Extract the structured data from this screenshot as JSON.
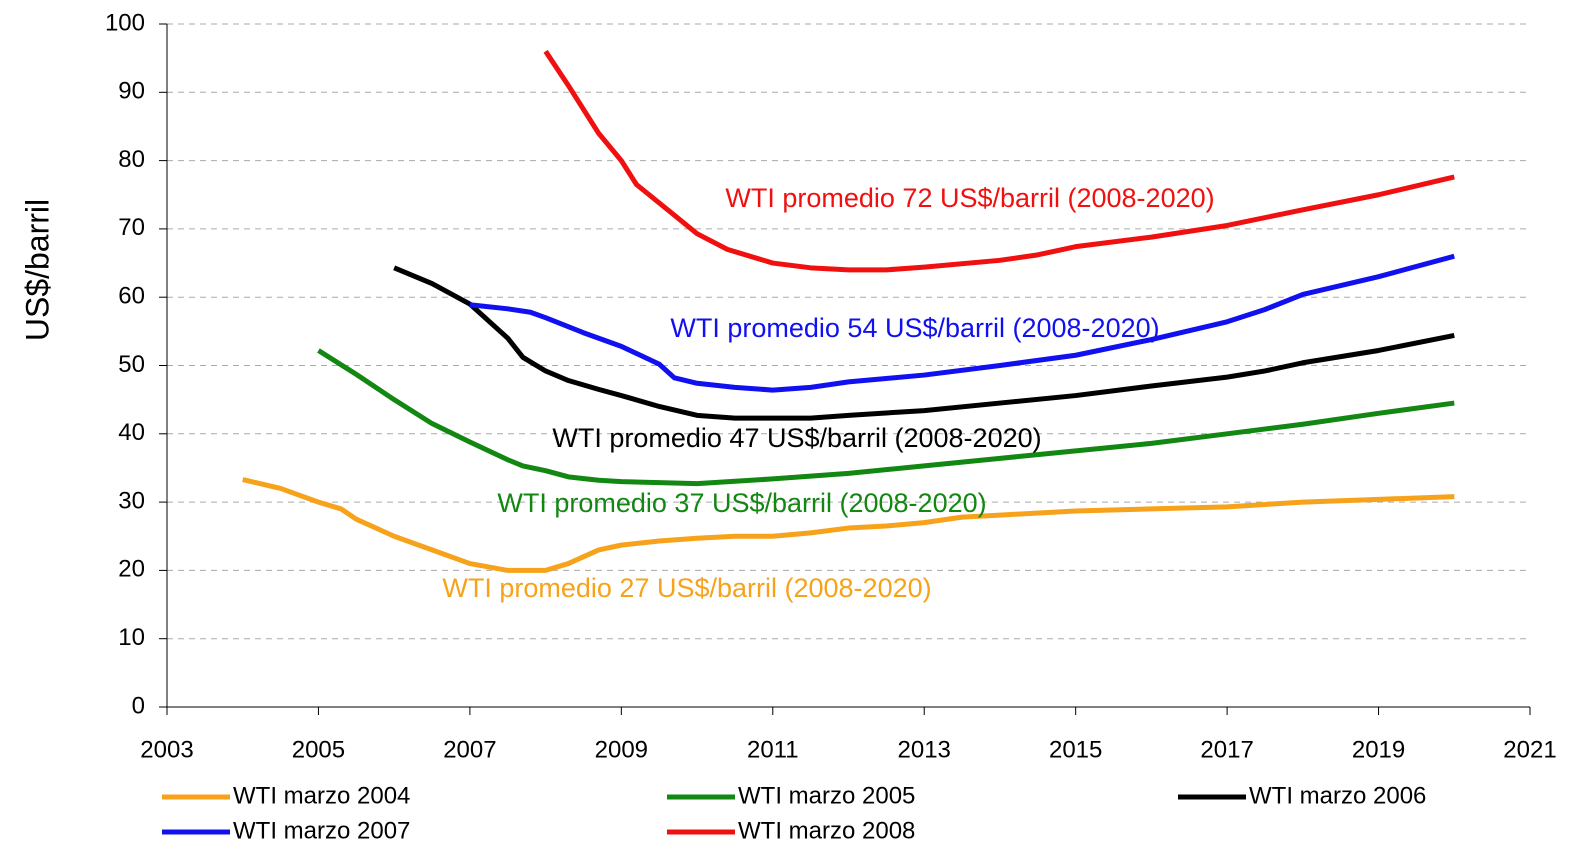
{
  "chart_data": {
    "type": "line",
    "ylabel": "US$/barril",
    "xlim": [
      2003,
      2021
    ],
    "xticks": [
      2003,
      2005,
      2007,
      2009,
      2011,
      2013,
      2015,
      2017,
      2019,
      2021
    ],
    "ylim": [
      0,
      100
    ],
    "yticks": [
      0,
      10,
      20,
      30,
      40,
      50,
      60,
      70,
      80,
      90,
      100
    ],
    "grid": true,
    "legend": "bottom",
    "series": [
      {
        "name": "WTI marzo 2004",
        "color": "#f7a21b",
        "x": [
          2004,
          2004.5,
          2005,
          2005.3,
          2005.5,
          2006,
          2006.5,
          2007,
          2007.5,
          2008,
          2008.3,
          2008.7,
          2009,
          2009.5,
          2010,
          2010.5,
          2011,
          2011.5,
          2012,
          2012.5,
          2013,
          2013.5,
          2014,
          2015,
          2016,
          2017,
          2018,
          2019,
          2020
        ],
        "values": [
          33.3,
          32,
          30,
          29,
          27.5,
          25,
          23,
          21,
          20,
          20,
          21,
          23,
          23.7,
          24.3,
          24.7,
          25,
          25,
          25.5,
          26.2,
          26.5,
          27,
          27.8,
          28.1,
          28.7,
          29,
          29.3,
          30,
          30.4,
          30.8
        ]
      },
      {
        "name": "WTI marzo 2005",
        "color": "#128712",
        "x": [
          2005,
          2005.5,
          2006,
          2006.5,
          2007,
          2007.5,
          2007.7,
          2008,
          2008.3,
          2008.7,
          2009,
          2010,
          2011,
          2012,
          2013,
          2014,
          2015,
          2016,
          2017,
          2018,
          2019,
          2020
        ],
        "values": [
          52.2,
          48.7,
          45,
          41.5,
          38.8,
          36.2,
          35.3,
          34.6,
          33.7,
          33.2,
          33,
          32.7,
          33.4,
          34.2,
          35.3,
          36.4,
          37.5,
          38.6,
          40,
          41.4,
          43,
          44.5
        ]
      },
      {
        "name": "WTI marzo 2006",
        "color": "#000000",
        "x": [
          2006,
          2006.5,
          2007,
          2007.5,
          2007.7,
          2008,
          2008.3,
          2008.7,
          2009,
          2009.5,
          2010,
          2010.5,
          2011,
          2011.5,
          2012,
          2013,
          2014,
          2015,
          2016,
          2017,
          2017.5,
          2018,
          2019,
          2020
        ],
        "values": [
          64.3,
          62,
          59,
          54,
          51.2,
          49.2,
          47.8,
          46.5,
          45.6,
          44,
          42.7,
          42.3,
          42.3,
          42.3,
          42.7,
          43.4,
          44.5,
          45.6,
          47,
          48.3,
          49.2,
          50.4,
          52.2,
          54.4
        ]
      },
      {
        "name": "WTI marzo 2007",
        "color": "#1010f0",
        "x": [
          2007,
          2007.5,
          2007.8,
          2008,
          2008.5,
          2009,
          2009.5,
          2009.7,
          2010,
          2010.5,
          2011,
          2011.5,
          2012,
          2013,
          2014,
          2015,
          2016,
          2017,
          2017.5,
          2018,
          2019,
          2020
        ],
        "values": [
          58.9,
          58.3,
          57.8,
          57,
          54.8,
          52.8,
          50.2,
          48.2,
          47.4,
          46.8,
          46.4,
          46.8,
          47.6,
          48.6,
          50,
          51.5,
          53.8,
          56.4,
          58.2,
          60.4,
          63,
          66
        ]
      },
      {
        "name": "WTI marzo 2008",
        "color": "#f01010",
        "x": [
          2008,
          2008.3,
          2008.7,
          2009,
          2009.2,
          2009.7,
          2010,
          2010.4,
          2011,
          2011.5,
          2012,
          2012.5,
          2013,
          2014,
          2014.5,
          2015,
          2016,
          2017,
          2018,
          2019,
          2020
        ],
        "values": [
          96,
          91,
          84,
          80,
          76.5,
          72,
          69.3,
          67,
          65,
          64.3,
          64,
          64,
          64.4,
          65.4,
          66.2,
          67.4,
          68.8,
          70.5,
          72.8,
          75,
          77.6
        ]
      }
    ],
    "annotations": [
      {
        "text": "WTI promedio 72 US$/barril (2008-2020)",
        "color": "#f01010"
      },
      {
        "text": "WTI promedio 54 US$/barril (2008-2020)",
        "color": "#1010f0"
      },
      {
        "text": "WTI promedio 47 US$/barril (2008-2020)",
        "color": "#000000"
      },
      {
        "text": "WTI promedio 37 US$/barril (2008-2020)",
        "color": "#128712"
      },
      {
        "text": "WTI promedio 27 US$/barril (2008-2020)",
        "color": "#f7a21b"
      }
    ]
  }
}
